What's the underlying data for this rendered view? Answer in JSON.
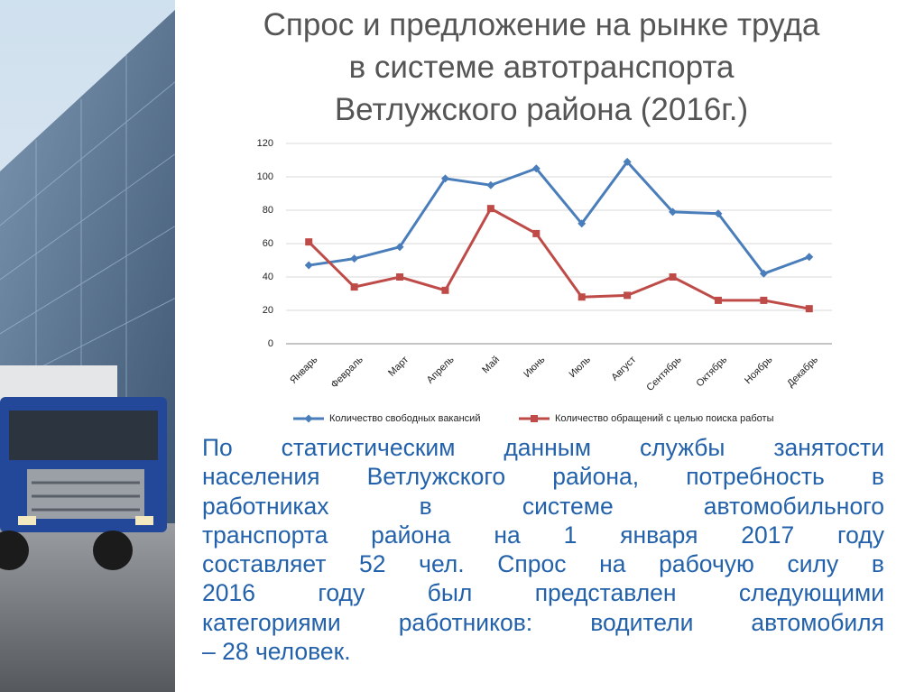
{
  "title": [
    "Спрос и предложение на рынке труда",
    "в системе автотранспорта",
    "Ветлужского района (2016г.)"
  ],
  "chart_data": {
    "type": "line",
    "categories": [
      "Январь",
      "Февраль",
      "Март",
      "Апрель",
      "Май",
      "Июнь",
      "Июль",
      "Август",
      "Сентябрь",
      "Октябрь",
      "Ноябрь",
      "Декабрь"
    ],
    "series": [
      {
        "name": "Количество свободных вакансий",
        "color": "#4a7ebb",
        "marker": "diamond",
        "values": [
          47,
          51,
          58,
          99,
          95,
          105,
          72,
          109,
          79,
          78,
          42,
          52
        ]
      },
      {
        "name": "Количество обращений с целью поиска работы",
        "color": "#be4b48",
        "marker": "square",
        "values": [
          61,
          34,
          40,
          32,
          81,
          66,
          28,
          29,
          40,
          26,
          26,
          21
        ]
      }
    ],
    "ylim": [
      0,
      120
    ],
    "yticks": [
      0,
      20,
      40,
      60,
      80,
      100,
      120
    ],
    "grid": true,
    "legend": "bottom"
  },
  "paragraph": [
    "По статистическим данным службы занятости",
    "населения Ветлужского района, потребность в",
    "работниках в системе автомобильного",
    "транспорта района на 1 января 2017 году",
    "составляет 52 чел. Спрос на рабочую силу в",
    "2016 году был представлен следующими",
    "категориями работников: водители автомобиля",
    "– 28 человек."
  ]
}
